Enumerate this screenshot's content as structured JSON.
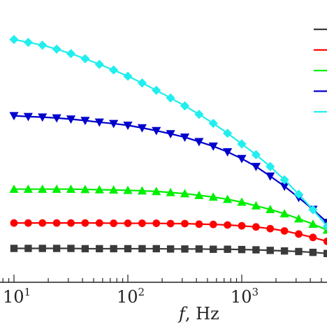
{
  "chart_data": {
    "type": "line",
    "title": "",
    "xlabel": {
      "symbol": "f",
      "unit": ", Hz"
    },
    "ylabel": "",
    "x_scale": "log",
    "xlim": [
      7.2,
      7200
    ],
    "ylim": [
      0,
      100
    ],
    "y_tick_labels_visible": false,
    "grid": false,
    "legend": {
      "placement": "top-right, clipped",
      "labels_visible": false
    },
    "x_ticks": [
      {
        "value": 10,
        "base": "10",
        "exp": "1"
      },
      {
        "value": 100,
        "base": "10",
        "exp": "2"
      },
      {
        "value": 1000,
        "base": "10",
        "exp": "3"
      }
    ],
    "x": [
      10,
      13.34,
      17.78,
      23.71,
      31.62,
      42.17,
      56.23,
      74.99,
      100,
      133.4,
      177.8,
      237.1,
      316.2,
      421.7,
      562.3,
      749.9,
      1000,
      1334,
      1778,
      2371,
      3162,
      4217,
      5623
    ],
    "series": [
      {
        "color": "#3a3a3a",
        "marker": "square",
        "values": [
          12.0,
          12.0,
          12.0,
          12.0,
          12.0,
          11.9,
          11.9,
          11.9,
          11.9,
          11.9,
          11.9,
          11.8,
          11.8,
          11.8,
          11.7,
          11.7,
          11.6,
          11.5,
          11.3,
          11.1,
          10.9,
          10.6,
          10.2
        ]
      },
      {
        "color": "#ff0000",
        "marker": "circle",
        "values": [
          21.0,
          21.0,
          21.0,
          21.0,
          21.0,
          21.0,
          21.0,
          20.9,
          20.9,
          20.9,
          20.9,
          20.8,
          20.8,
          20.6,
          20.5,
          20.3,
          20.0,
          19.6,
          19.0,
          18.2,
          17.1,
          15.9,
          14.5
        ]
      },
      {
        "color": "#00ee00",
        "marker": "triangle-up",
        "values": [
          33.0,
          33.0,
          33.0,
          33.0,
          33.0,
          32.9,
          32.8,
          32.7,
          32.6,
          32.4,
          32.2,
          31.8,
          31.4,
          30.8,
          30.2,
          29.4,
          28.4,
          27.1,
          25.8,
          24.3,
          22.5,
          20.6,
          18.5
        ]
      },
      {
        "color": "#0000cc",
        "marker": "triangle-down",
        "values": [
          59.0,
          58.7,
          58.5,
          58.2,
          57.8,
          57.3,
          56.7,
          56.2,
          55.6,
          54.7,
          53.7,
          52.6,
          51.4,
          49.8,
          48.2,
          46.2,
          43.8,
          41.0,
          37.6,
          34.0,
          30.0,
          25.8,
          21.2
        ]
      },
      {
        "color": "#22eeee",
        "marker": "diamond",
        "values": [
          86.0,
          85.0,
          84.0,
          82.6,
          81.0,
          79.2,
          77.2,
          75.2,
          73.0,
          70.6,
          68.0,
          65.3,
          62.5,
          59.5,
          56.3,
          52.8,
          49.0,
          45.2,
          41.0,
          36.3,
          31.2,
          25.7,
          19.8
        ]
      }
    ]
  }
}
